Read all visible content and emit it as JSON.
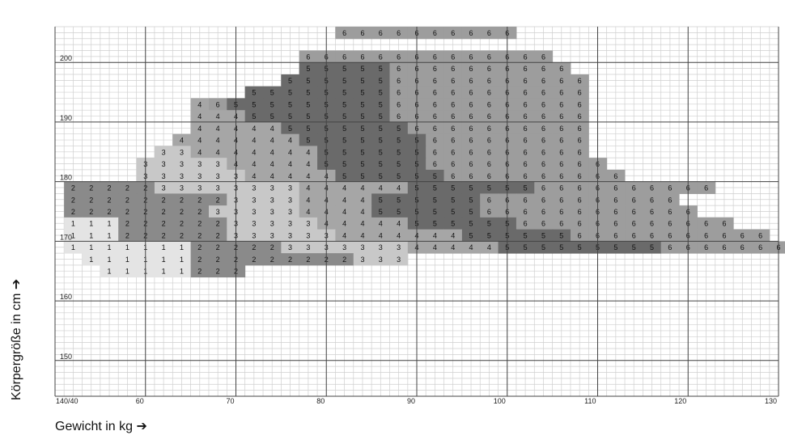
{
  "chart_data": {
    "type": "heatmap",
    "xlabel": "Gewicht in kg ➔",
    "ylabel": "Körpergröße in cm ➔",
    "origin_label": "140/40",
    "x_ticks": [
      60,
      70,
      80,
      90,
      100,
      110,
      120,
      130
    ],
    "y_ticks": [
      150,
      160,
      170,
      180,
      190,
      200
    ],
    "xlim": [
      50,
      130
    ],
    "ylim": [
      144,
      206
    ],
    "x_step": 2,
    "y_step": 2,
    "colors": {
      "1": "#e4e4e4",
      "2": "#8a8a8a",
      "3": "#c8c8c8",
      "4": "#a6a6a6",
      "5": "#6a6a6a",
      "6": "#9d9d9d"
    },
    "rows": [
      {
        "height": 206,
        "start_weight": 81,
        "sizes": [
          6,
          6,
          6,
          6,
          6,
          6,
          6,
          6,
          6,
          6
        ]
      },
      {
        "height": 202,
        "start_weight": 77,
        "sizes": [
          6,
          6,
          6,
          6,
          6,
          6,
          6,
          6,
          6,
          6,
          6,
          6,
          6,
          6
        ]
      },
      {
        "height": 200,
        "start_weight": 77,
        "sizes": [
          5,
          5,
          5,
          5,
          5,
          6,
          6,
          6,
          6,
          6,
          6,
          6,
          6,
          6,
          6
        ]
      },
      {
        "height": 198,
        "start_weight": 75,
        "sizes": [
          5,
          5,
          5,
          5,
          5,
          5,
          6,
          6,
          6,
          6,
          6,
          6,
          6,
          6,
          6,
          6,
          6
        ]
      },
      {
        "height": 196,
        "start_weight": 71,
        "sizes": [
          5,
          5,
          5,
          5,
          5,
          5,
          5,
          5,
          6,
          6,
          6,
          6,
          6,
          6,
          6,
          6,
          6,
          6,
          6
        ]
      },
      {
        "height": 194,
        "start_weight": 65,
        "sizes": [
          4,
          6,
          5,
          5,
          5,
          5,
          5,
          5,
          5,
          5,
          5,
          6,
          6,
          6,
          6,
          6,
          6,
          6,
          6,
          6,
          6,
          6
        ]
      },
      {
        "height": 192,
        "start_weight": 65,
        "sizes": [
          4,
          4,
          4,
          5,
          5,
          5,
          5,
          5,
          5,
          5,
          5,
          6,
          6,
          6,
          6,
          6,
          6,
          6,
          6,
          6,
          6,
          6
        ]
      },
      {
        "height": 190,
        "start_weight": 65,
        "sizes": [
          4,
          4,
          4,
          4,
          4,
          5,
          5,
          5,
          5,
          5,
          5,
          5,
          6,
          6,
          6,
          6,
          6,
          6,
          6,
          6,
          6,
          6
        ]
      },
      {
        "height": 188,
        "start_weight": 63,
        "sizes": [
          4,
          4,
          4,
          4,
          4,
          4,
          4,
          5,
          5,
          5,
          5,
          5,
          5,
          5,
          6,
          6,
          6,
          6,
          6,
          6,
          6,
          6,
          6
        ]
      },
      {
        "height": 186,
        "start_weight": 61,
        "sizes": [
          3,
          3,
          4,
          4,
          4,
          4,
          4,
          4,
          4,
          5,
          5,
          5,
          5,
          5,
          5,
          6,
          6,
          6,
          6,
          6,
          6,
          6,
          6,
          6
        ]
      },
      {
        "height": 184,
        "start_weight": 59,
        "sizes": [
          3,
          3,
          3,
          3,
          3,
          4,
          4,
          4,
          4,
          4,
          5,
          5,
          5,
          5,
          5,
          5,
          6,
          6,
          6,
          6,
          6,
          6,
          6,
          6,
          6,
          6
        ]
      },
      {
        "height": 182,
        "start_weight": 59,
        "sizes": [
          3,
          3,
          3,
          3,
          3,
          3,
          4,
          4,
          4,
          4,
          4,
          5,
          5,
          5,
          5,
          5,
          5,
          6,
          6,
          6,
          6,
          6,
          6,
          6,
          6,
          6,
          6
        ]
      },
      {
        "height": 180,
        "start_weight": 51,
        "sizes": [
          2,
          2,
          2,
          2,
          2,
          3,
          3,
          3,
          3,
          3,
          3,
          3,
          3,
          4,
          4,
          4,
          4,
          4,
          4,
          5,
          5,
          5,
          5,
          5,
          5,
          5,
          6,
          6,
          6,
          6,
          6,
          6,
          6,
          6,
          6,
          6
        ]
      },
      {
        "height": 178,
        "start_weight": 51,
        "sizes": [
          2,
          2,
          2,
          2,
          2,
          2,
          2,
          2,
          2,
          3,
          3,
          3,
          3,
          4,
          4,
          4,
          4,
          5,
          5,
          5,
          5,
          5,
          5,
          6,
          6,
          6,
          6,
          6,
          6,
          6,
          6,
          6,
          6,
          6
        ]
      },
      {
        "height": 176,
        "start_weight": 51,
        "sizes": [
          2,
          2,
          2,
          2,
          2,
          2,
          2,
          2,
          3,
          3,
          3,
          3,
          3,
          4,
          4,
          4,
          4,
          5,
          5,
          5,
          5,
          5,
          5,
          6,
          6,
          6,
          6,
          6,
          6,
          6,
          6,
          6,
          6,
          6,
          6
        ]
      },
      {
        "height": 174,
        "start_weight": 51,
        "sizes": [
          1,
          1,
          1,
          2,
          2,
          2,
          2,
          2,
          2,
          3,
          3,
          3,
          3,
          3,
          4,
          4,
          4,
          4,
          4,
          5,
          5,
          5,
          5,
          5,
          5,
          6,
          6,
          6,
          6,
          6,
          6,
          6,
          6,
          6,
          6,
          6,
          6
        ]
      },
      {
        "height": 172,
        "start_weight": 51,
        "sizes": [
          1,
          1,
          1,
          2,
          2,
          2,
          2,
          2,
          2,
          3,
          3,
          3,
          3,
          3,
          3,
          4,
          4,
          4,
          4,
          4,
          4,
          4,
          5,
          5,
          5,
          5,
          5,
          5,
          6,
          6,
          6,
          6,
          6,
          6,
          6,
          6,
          6,
          6,
          6
        ]
      },
      {
        "height": 170,
        "start_weight": 51,
        "sizes": [
          1,
          1,
          1,
          1,
          1,
          1,
          1,
          2,
          2,
          2,
          2,
          2,
          3,
          3,
          3,
          3,
          3,
          3,
          3,
          4,
          4,
          4,
          4,
          4,
          5,
          5,
          5,
          5,
          5,
          5,
          5,
          5,
          5,
          6,
          6,
          6,
          6,
          6,
          6,
          6,
          6
        ]
      },
      {
        "height": 168,
        "start_weight": 53,
        "sizes": [
          1,
          1,
          1,
          1,
          1,
          1,
          2,
          2,
          2,
          2,
          2,
          2,
          2,
          2,
          2,
          3,
          3,
          3
        ]
      },
      {
        "height": 166,
        "start_weight": 55,
        "sizes": [
          1,
          1,
          1,
          1,
          1,
          2,
          2,
          2
        ]
      }
    ]
  }
}
